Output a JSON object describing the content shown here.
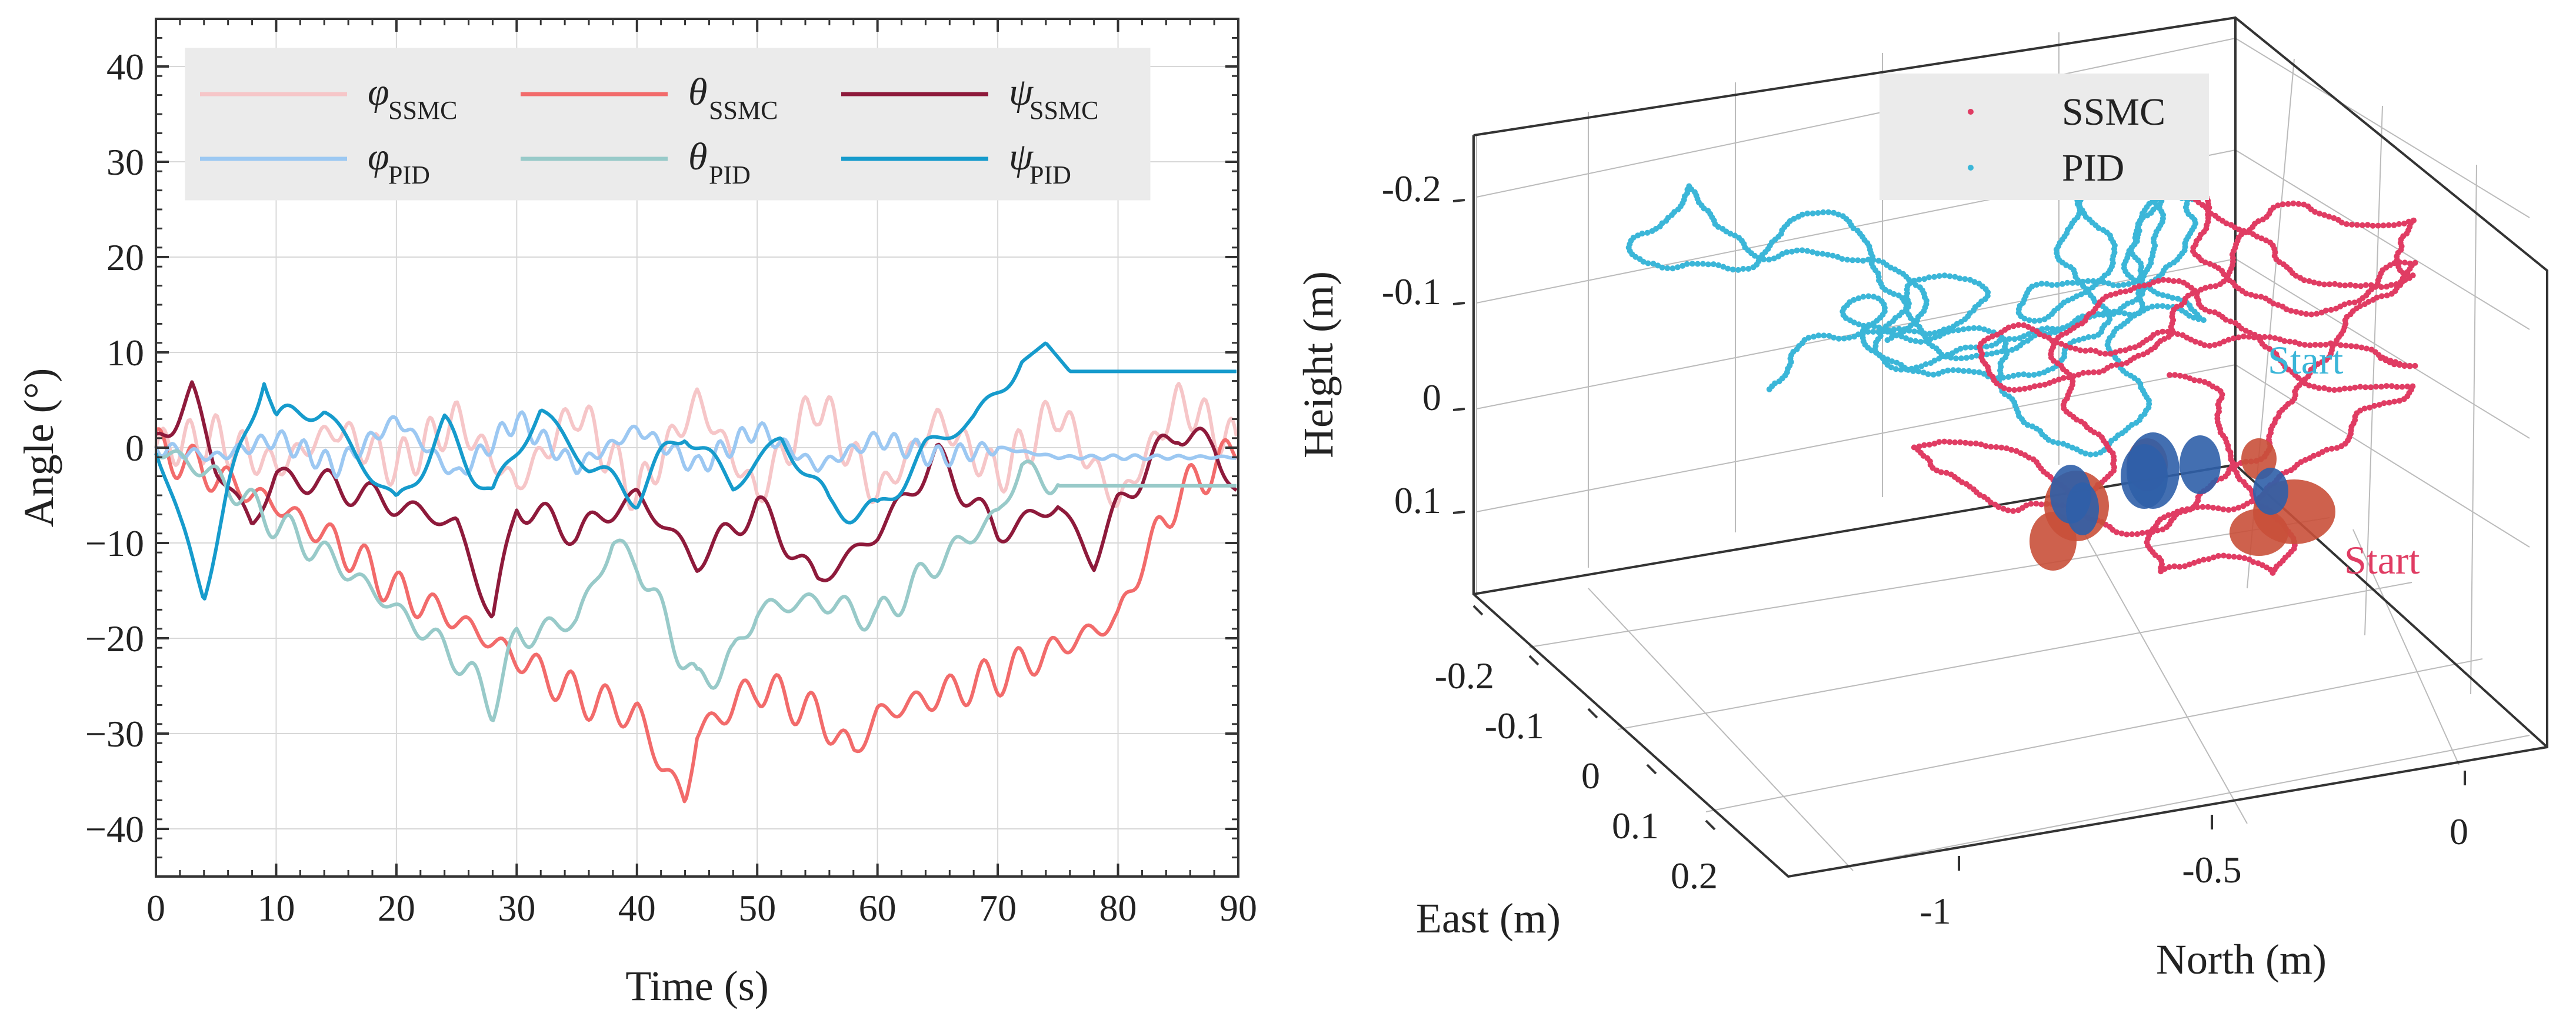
{
  "chart_data": [
    {
      "type": "line",
      "xlabel": "Time (s)",
      "ylabel": "Angle (°)",
      "xlim": [
        0,
        90
      ],
      "ylim": [
        -45,
        45
      ],
      "xticks": [
        0,
        10,
        20,
        30,
        40,
        50,
        60,
        70,
        80,
        90
      ],
      "yticks": [
        -40,
        -30,
        -20,
        -10,
        0,
        10,
        20,
        30,
        40
      ],
      "grid": true,
      "legend_position": "top",
      "series": [
        {
          "name": "φSSMC",
          "symbol": "φ",
          "subscript": "SSMC",
          "color": "#F6C6C8",
          "x": [
            0,
            5,
            10,
            15,
            20,
            25,
            30,
            35,
            40,
            45,
            50,
            55,
            60,
            65,
            70,
            75,
            80,
            85,
            90
          ],
          "y": [
            0,
            1,
            -2,
            2,
            -2,
            3,
            -4,
            4,
            -5,
            5,
            -5,
            5,
            -5,
            3,
            -3,
            4,
            -6,
            5,
            0
          ]
        },
        {
          "name": "θSSMC",
          "symbol": "θ",
          "subscript": "SSMC",
          "color": "#F26B6B",
          "x": [
            0,
            5,
            10,
            15,
            20,
            25,
            30,
            35,
            40,
            42,
            44,
            45,
            50,
            55,
            58,
            60,
            65,
            70,
            75,
            80,
            82,
            85,
            88,
            90
          ],
          "y": [
            0,
            -3,
            -6,
            -10,
            -15,
            -18,
            -22,
            -26,
            -28,
            -33,
            -37,
            -30,
            -25,
            -28,
            -32,
            -28,
            -26,
            -24,
            -21,
            -18,
            -12,
            -5,
            -2,
            0
          ]
        },
        {
          "name": "ψSSMC",
          "symbol": "ψ",
          "subscript": "SSMC",
          "color": "#8E1A3B",
          "x": [
            0,
            3,
            5,
            8,
            10,
            15,
            20,
            25,
            28,
            30,
            35,
            40,
            45,
            50,
            55,
            60,
            63,
            65,
            70,
            75,
            78,
            80,
            85,
            88,
            90
          ],
          "y": [
            0,
            6,
            -2,
            -8,
            -3,
            -4,
            -6,
            -8,
            -18,
            -6,
            -9,
            -5,
            -12,
            -6,
            -14,
            -9,
            -4,
            -1,
            -9,
            -6,
            -12,
            -6,
            2,
            0,
            -5
          ]
        },
        {
          "name": "φPID",
          "symbol": "φ",
          "subscript": "PID",
          "color": "#9CC8F2",
          "x": [
            0,
            5,
            10,
            15,
            20,
            25,
            30,
            35,
            40,
            45,
            50,
            55,
            60,
            65,
            70,
            75,
            80,
            90
          ],
          "y": [
            0,
            -1,
            1,
            -2,
            3,
            -3,
            3,
            -2,
            2,
            -2,
            2,
            -2,
            1,
            -1,
            0,
            -1,
            -1,
            -1
          ]
        },
        {
          "name": "θPID",
          "symbol": "θ",
          "subscript": "PID",
          "color": "#98CAC9",
          "x": [
            0,
            5,
            10,
            15,
            20,
            25,
            28,
            30,
            35,
            38,
            40,
            45,
            48,
            50,
            55,
            60,
            65,
            70,
            72,
            75,
            80,
            90
          ],
          "y": [
            0,
            -3,
            -8,
            -12,
            -17,
            -22,
            -27,
            -20,
            -18,
            -10,
            -12,
            -25,
            -22,
            -17,
            -16,
            -18,
            -12,
            -7,
            -2,
            -4,
            -4,
            -4
          ]
        },
        {
          "name": "ψPID",
          "symbol": "ψ",
          "subscript": "PID",
          "color": "#169BCC",
          "x": [
            0,
            2,
            4,
            6,
            9,
            10,
            14,
            18,
            20,
            24,
            28,
            32,
            36,
            40,
            44,
            48,
            52,
            56,
            60,
            64,
            68,
            70,
            72,
            74,
            76,
            80,
            85,
            90
          ],
          "y": [
            0,
            -8,
            -15,
            -5,
            8,
            3,
            4,
            -3,
            -6,
            2,
            -5,
            4,
            -2,
            -5,
            2,
            -4,
            1,
            -6,
            -7,
            0,
            3,
            6,
            9,
            11,
            8,
            8,
            8,
            8
          ]
        }
      ]
    },
    {
      "type": "scatter3d",
      "xlabel": "North (m)",
      "ylabel": "East (m)",
      "zlabel": "Height (m)",
      "north_ticks": [
        "-1",
        "-0.5",
        "0"
      ],
      "east_ticks": [
        "-0.2",
        "-0.1",
        "0",
        "0.1",
        "0.2"
      ],
      "height_ticks": [
        "-0.2",
        "-0.1",
        "0",
        "0.1"
      ],
      "legend_position": "top-right",
      "annotations": [
        "Start",
        "Start"
      ],
      "series": [
        {
          "name": "SSMC",
          "color": "#E03C63",
          "marker_color": "#C9503A"
        },
        {
          "name": "PID",
          "color": "#3BB6D8",
          "marker_color": "#2F5FA8"
        }
      ]
    }
  ]
}
